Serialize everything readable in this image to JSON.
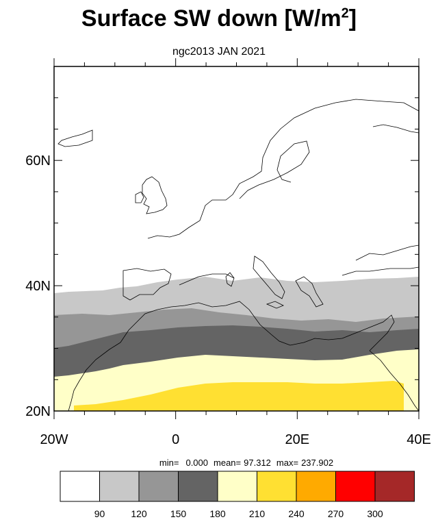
{
  "title": {
    "main": "Surface SW down [W/m",
    "sup": "2",
    "end": "]"
  },
  "subtitle": "ngc2013 JAN 2021",
  "stats": {
    "min_label": "min=",
    "min": "0.000",
    "mean_label": "mean=",
    "mean": "97.312",
    "max_label": "max=",
    "max": "237.902"
  },
  "chart_data": {
    "type": "heatmap",
    "title": "Surface SW down [W/m2]",
    "subtitle": "ngc2013 JAN 2021",
    "xlim": [
      -20,
      40
    ],
    "ylim": [
      20,
      75
    ],
    "x_ticks": [
      {
        "v": -20,
        "label": "20W"
      },
      {
        "v": 0,
        "label": "0"
      },
      {
        "v": 20,
        "label": "20E"
      },
      {
        "v": 40,
        "label": "40E"
      }
    ],
    "y_ticks": [
      {
        "v": 20,
        "label": "20N"
      },
      {
        "v": 40,
        "label": "40N"
      },
      {
        "v": 60,
        "label": "60N"
      }
    ],
    "colorbar": {
      "levels": [
        90,
        120,
        150,
        180,
        210,
        240,
        270,
        300
      ],
      "colors": [
        "#ffffff",
        "#c8c8c8",
        "#969696",
        "#646464",
        "#ffffc8",
        "#ffe032",
        "#ffaa00",
        "#ff0000",
        "#a52828"
      ]
    },
    "approx_bands": [
      {
        "range": "0-90",
        "lat_from": 40,
        "lat_to": 75
      },
      {
        "range": "90-120",
        "lat_from": 35,
        "lat_to": 40
      },
      {
        "range": "120-150",
        "lat_from": 31,
        "lat_to": 35
      },
      {
        "range": "150-180",
        "lat_from": 27,
        "lat_to": 31
      },
      {
        "range": "180-210",
        "lat_from": 22,
        "lat_to": 27
      },
      {
        "range": "210-240",
        "lat_from": 20,
        "lat_to": 22
      }
    ],
    "min": 0.0,
    "mean": 97.312,
    "max": 237.902
  }
}
